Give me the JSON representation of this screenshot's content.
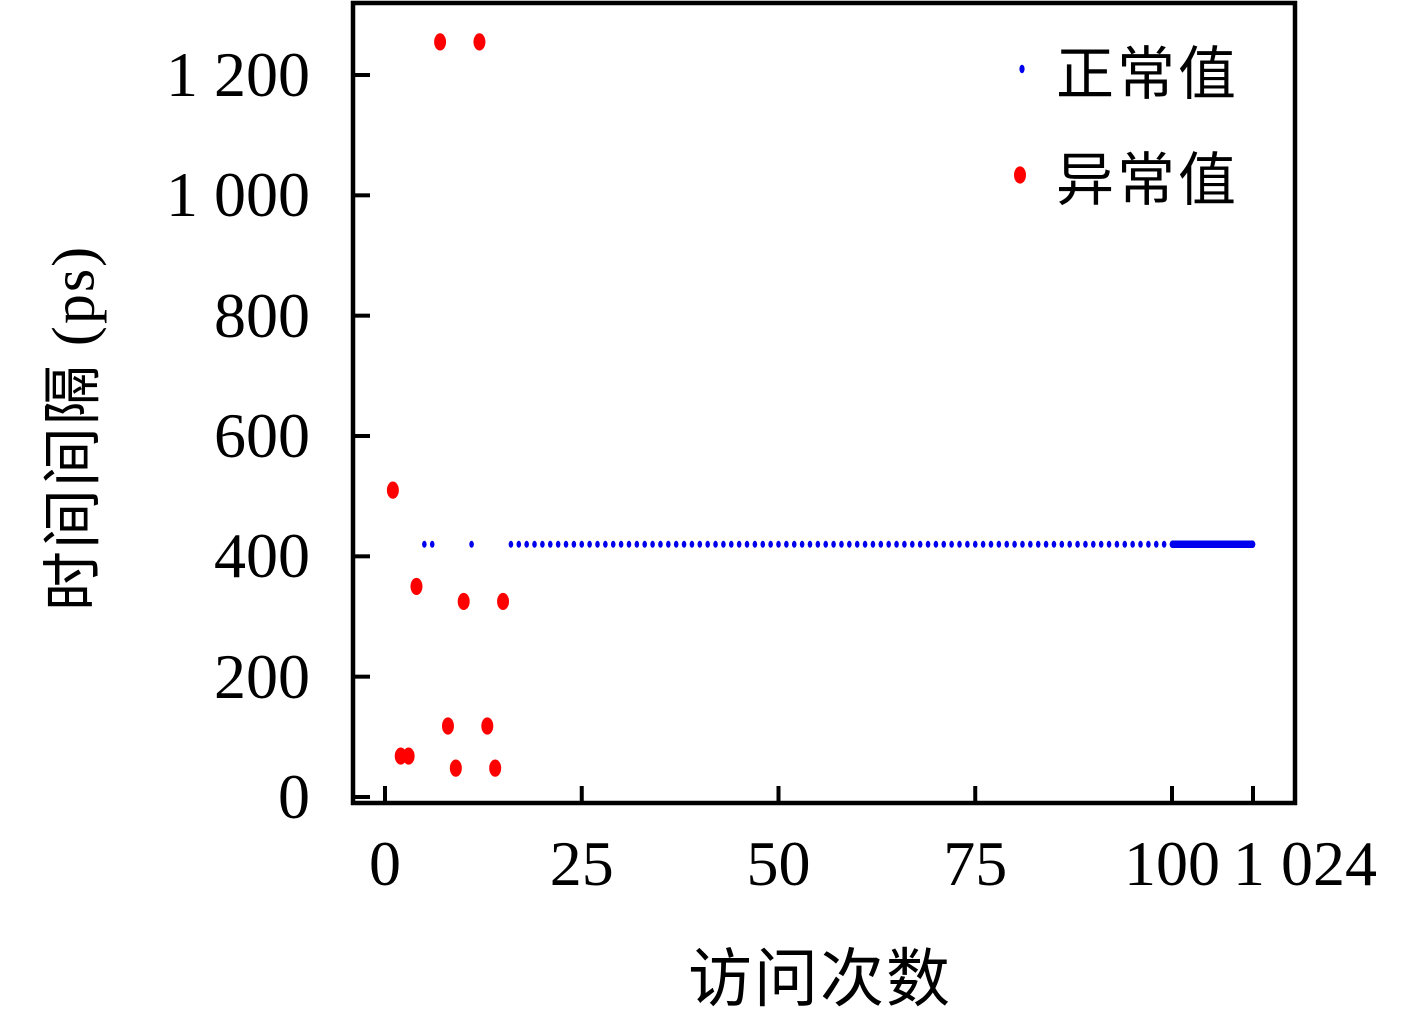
{
  "chart_data": {
    "type": "scatter",
    "title": "",
    "xlabel": "访问次数",
    "ylabel": "时间间隔 (ps)",
    "y_axis": {
      "min": 0,
      "max": 1320,
      "ticks": [
        {
          "value": 0,
          "label": "0"
        },
        {
          "value": 200,
          "label": "200"
        },
        {
          "value": 400,
          "label": "400"
        },
        {
          "value": 600,
          "label": "600"
        },
        {
          "value": 800,
          "label": "800"
        },
        {
          "value": 1000,
          "label": "1 000"
        },
        {
          "value": 1200,
          "label": "1 200"
        }
      ]
    },
    "x_axis": {
      "min": 0,
      "linear_max": 100,
      "compressed_end": 1024,
      "ticks": [
        {
          "value": 0,
          "label": "0",
          "dx": 0
        },
        {
          "value": 25,
          "label": "25",
          "dx": 0
        },
        {
          "value": 50,
          "label": "50",
          "dx": 0
        },
        {
          "value": 75,
          "label": "75",
          "dx": 0
        },
        {
          "value": 100,
          "label": "100",
          "dx": 0
        },
        {
          "value": 1024,
          "label": "1 024",
          "dx": 52
        }
      ]
    },
    "grid": false,
    "legend_position": "top-right-inside",
    "series": [
      {
        "name": "正常值",
        "color": "#0000ee",
        "marker": "small-ellipse",
        "y": 420,
        "x_sparse": [
          5,
          6,
          11
        ],
        "x_run": {
          "from": 16,
          "to": 1024,
          "step": 1
        }
      },
      {
        "name": "异常值",
        "color": "#ff0000",
        "marker": "large-ellipse",
        "points": [
          [
            1,
            510
          ],
          [
            2,
            68
          ],
          [
            3,
            68
          ],
          [
            4,
            350
          ],
          [
            7,
            1255
          ],
          [
            8,
            118
          ],
          [
            9,
            48
          ],
          [
            10,
            325
          ],
          [
            12,
            1255
          ],
          [
            13,
            118
          ],
          [
            14,
            48
          ],
          [
            15,
            325
          ]
        ]
      }
    ]
  }
}
